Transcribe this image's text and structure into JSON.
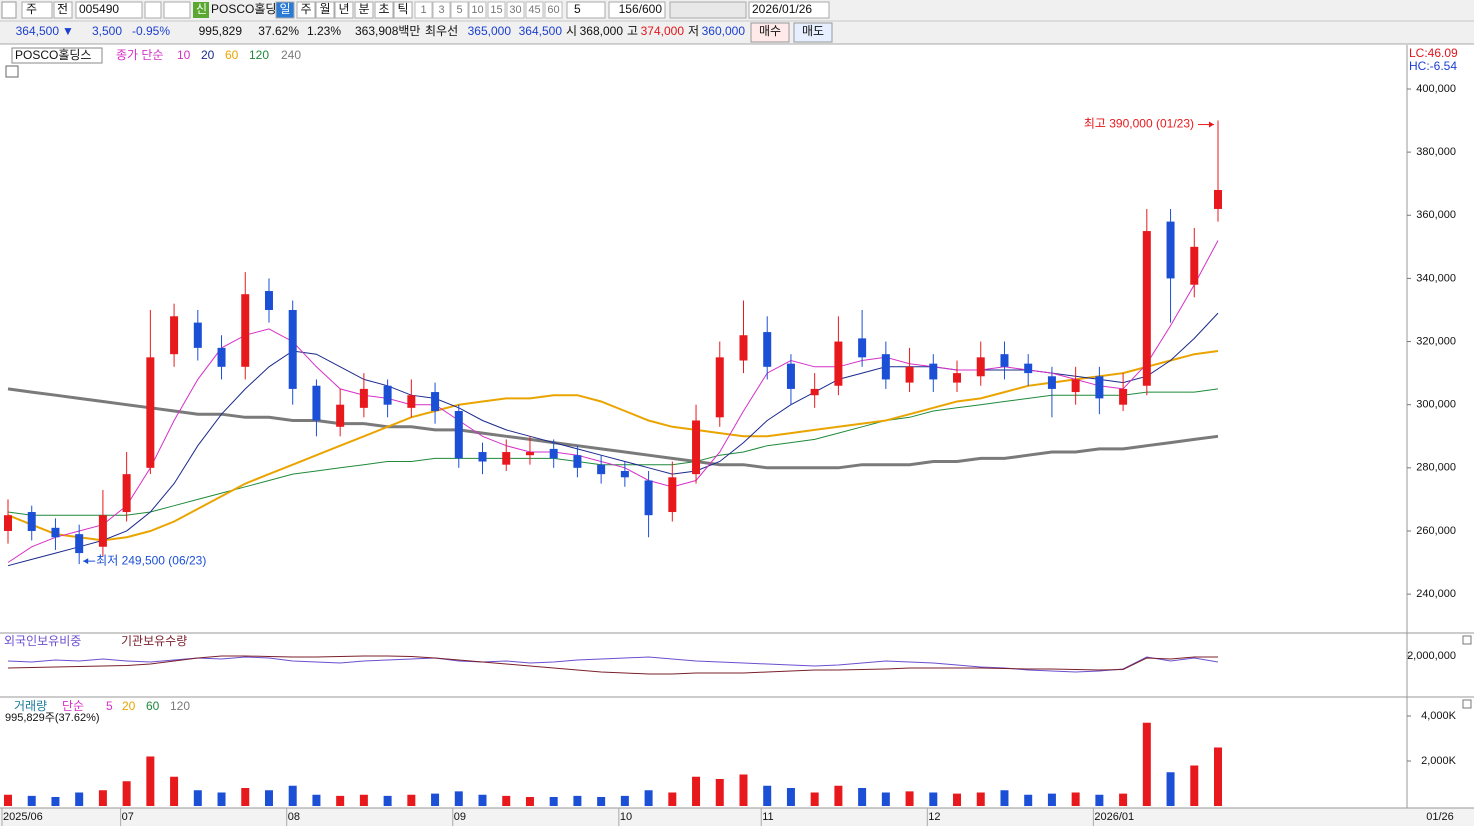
{
  "toolbar": {
    "market": "주",
    "all": "전",
    "code": "005490",
    "new": "신",
    "name": "POSCO홀딩",
    "periods": [
      "일",
      "주",
      "월",
      "년",
      "분",
      "초",
      "틱"
    ],
    "minutes": [
      "1",
      "3",
      "5",
      "10",
      "15",
      "30",
      "45",
      "60"
    ],
    "count_select": "5",
    "count": "156/600",
    "date": "2026/01/26"
  },
  "quote": {
    "price": "364,500",
    "arrow": "▼",
    "change": "3,500",
    "change_rate": "-0.95%",
    "volume": "995,829",
    "volume_ratio": "37.62%",
    "turnover": "1.23%",
    "amount": "363,908백만",
    "best_label": "최우선",
    "best_ask": "365,000",
    "best_bid": "364,500",
    "open_label": "시",
    "open": "368,000",
    "high_label": "고",
    "high": "374,000",
    "low_label": "저",
    "low": "360,000",
    "buy": "매수",
    "sell": "매도"
  },
  "chart_data": [
    {
      "type": "candlestick",
      "name": "POSCO홀딩스",
      "ma_label": "종가 단순",
      "categories": [
        "2025/06",
        null,
        null,
        null,
        null,
        "07",
        null,
        null,
        null,
        null,
        null,
        null,
        "08",
        null,
        null,
        null,
        null,
        null,
        null,
        "09",
        null,
        null,
        null,
        null,
        null,
        null,
        "10",
        null,
        null,
        null,
        null,
        null,
        "11",
        null,
        null,
        null,
        null,
        null,
        null,
        "12",
        null,
        null,
        null,
        null,
        null,
        null,
        "2026/01",
        null,
        null,
        null,
        null,
        null
      ],
      "open": [
        260000,
        266000,
        261000,
        259000,
        255000,
        266000,
        280000,
        316000,
        326000,
        318000,
        312000,
        336000,
        330000,
        306000,
        293000,
        299000,
        306000,
        299000,
        304000,
        298000,
        285000,
        281000,
        284000,
        286000,
        284000,
        281000,
        279000,
        276000,
        266000,
        278000,
        296000,
        314000,
        323000,
        313000,
        303000,
        306000,
        321000,
        316000,
        307000,
        313000,
        307000,
        309000,
        316000,
        313000,
        309000,
        304000,
        309000,
        300000,
        306000,
        358000,
        338000,
        362000
      ],
      "high": [
        270000,
        268000,
        264000,
        262000,
        273000,
        285000,
        330000,
        332000,
        330000,
        322000,
        342000,
        340000,
        333000,
        308000,
        305000,
        310000,
        308000,
        308000,
        307000,
        300000,
        288000,
        289000,
        290000,
        289000,
        287000,
        284000,
        282000,
        279000,
        282000,
        300000,
        320000,
        333000,
        328000,
        316000,
        310000,
        328000,
        330000,
        320000,
        318000,
        316000,
        314000,
        320000,
        320000,
        316000,
        312000,
        312000,
        312000,
        310000,
        362000,
        362000,
        356000,
        390000
      ],
      "low": [
        256000,
        257000,
        254000,
        249500,
        252000,
        263000,
        278000,
        312000,
        314000,
        308000,
        308000,
        326000,
        300000,
        290000,
        290000,
        296000,
        296000,
        296000,
        294000,
        280000,
        278000,
        279000,
        281000,
        280000,
        277000,
        275000,
        274000,
        258000,
        263000,
        275000,
        293000,
        310000,
        308000,
        300000,
        299000,
        303000,
        312000,
        305000,
        304000,
        304000,
        304000,
        306000,
        308000,
        306000,
        296000,
        300000,
        297000,
        298000,
        303000,
        326000,
        334000,
        358000
      ],
      "close": [
        265000,
        260000,
        258000,
        253000,
        265000,
        278000,
        315000,
        328000,
        318000,
        312000,
        335000,
        330000,
        305000,
        295000,
        300000,
        305000,
        300000,
        303000,
        298000,
        283000,
        282000,
        285000,
        285000,
        283000,
        280000,
        278000,
        277000,
        265000,
        277000,
        295000,
        315000,
        322000,
        312000,
        305000,
        305000,
        320000,
        315000,
        308000,
        312000,
        308000,
        310000,
        315000,
        312000,
        310000,
        305000,
        308000,
        302000,
        305000,
        355000,
        340000,
        350000,
        368000
      ],
      "up_color": "#e8191d",
      "down_color": "#1b4fd6",
      "series": [
        {
          "name": "10",
          "color": "#d62fc8",
          "width": 1,
          "values": [
            250000,
            255000,
            258000,
            260000,
            262000,
            268000,
            280000,
            295000,
            308000,
            318000,
            322000,
            324000,
            320000,
            312000,
            305000,
            303000,
            302000,
            300000,
            300000,
            295000,
            290000,
            287000,
            285000,
            285000,
            284000,
            282000,
            280000,
            276000,
            274000,
            276000,
            285000,
            298000,
            310000,
            314000,
            312000,
            312000,
            314000,
            315000,
            313000,
            312000,
            311000,
            311000,
            312000,
            311000,
            310000,
            308000,
            306000,
            305000,
            313000,
            325000,
            338000,
            352000
          ]
        },
        {
          "name": "20",
          "color": "#1a2a8c",
          "width": 1,
          "values": [
            249000,
            251000,
            253000,
            255000,
            257000,
            260000,
            266000,
            275000,
            287000,
            297000,
            305000,
            312000,
            317000,
            316000,
            312000,
            308000,
            306000,
            303000,
            302000,
            299000,
            295000,
            292000,
            290000,
            288000,
            286000,
            284000,
            282000,
            280000,
            278000,
            279000,
            282000,
            288000,
            295000,
            300000,
            304000,
            308000,
            310000,
            312000,
            312000,
            312000,
            311000,
            311000,
            311000,
            311000,
            310000,
            309000,
            308000,
            307000,
            309000,
            314000,
            321000,
            329000
          ]
        },
        {
          "name": "60",
          "color": "#eaa400",
          "width": 2,
          "values": [
            265000,
            262000,
            259000,
            258000,
            257000,
            258000,
            260000,
            263000,
            267000,
            271000,
            275000,
            278000,
            281000,
            284000,
            287000,
            290000,
            293000,
            296000,
            298000,
            300000,
            301000,
            302000,
            302000,
            303000,
            303000,
            301000,
            298000,
            295000,
            293000,
            292000,
            291000,
            290000,
            290000,
            291000,
            292000,
            293000,
            294000,
            295000,
            297000,
            299000,
            301000,
            302000,
            304000,
            306000,
            307000,
            308000,
            309000,
            310000,
            312000,
            314000,
            316000,
            317000
          ]
        },
        {
          "name": "120",
          "color": "#1f8a3a",
          "width": 1,
          "values": [
            266000,
            265000,
            265000,
            265000,
            265000,
            265000,
            266000,
            268000,
            270000,
            272000,
            274000,
            276000,
            278000,
            279000,
            280000,
            281000,
            282000,
            282000,
            283000,
            283000,
            283000,
            283000,
            283000,
            283000,
            282000,
            281000,
            281000,
            281000,
            281000,
            282000,
            284000,
            285000,
            287000,
            288000,
            289000,
            291000,
            293000,
            295000,
            296000,
            298000,
            299000,
            300000,
            301000,
            302000,
            303000,
            303000,
            303000,
            303000,
            304000,
            304000,
            304000,
            305000
          ]
        },
        {
          "name": "240",
          "color": "#7a7a7a",
          "width": 3,
          "values": [
            305000,
            304000,
            303000,
            302000,
            301000,
            300000,
            299000,
            298000,
            297000,
            297000,
            296000,
            296000,
            295000,
            295000,
            294000,
            294000,
            293000,
            293000,
            292000,
            292000,
            291000,
            290000,
            289000,
            288000,
            287000,
            286000,
            285000,
            284000,
            283000,
            282000,
            281000,
            281000,
            280000,
            280000,
            280000,
            280000,
            281000,
            281000,
            281000,
            282000,
            282000,
            283000,
            283000,
            284000,
            285000,
            285000,
            286000,
            286000,
            287000,
            288000,
            289000,
            290000
          ]
        }
      ],
      "ylim": [
        228000,
        413300
      ],
      "yticks": [
        {
          "value": 240000,
          "label": "240,000"
        },
        {
          "value": 260000,
          "label": "260,000"
        },
        {
          "value": 280000,
          "label": "280,000"
        },
        {
          "value": 300000,
          "label": "300,000"
        },
        {
          "value": 320000,
          "label": "320,000"
        },
        {
          "value": 340000,
          "label": "340,000"
        },
        {
          "value": 360000,
          "label": "360,000"
        },
        {
          "value": 380000,
          "label": "380,000"
        },
        {
          "value": 400000,
          "label": "400,000"
        }
      ],
      "high_annotation": "최고 390,000 (01/23)",
      "low_annotation": "최저 249,500 (06/23)",
      "lc_label": "LC:46.09",
      "hc_label": "HC:-6.54",
      "x_cursor_label": "01/26"
    },
    {
      "type": "line",
      "series": [
        {
          "name": "외국인보유비중",
          "color": "#6b4fcf",
          "values": [
            1900000,
            1880000,
            1920000,
            1900000,
            1940000,
            1900000,
            1880000,
            1920000,
            1960000,
            1940000,
            1980000,
            1960000,
            1900000,
            1880000,
            1860000,
            1900000,
            1920000,
            1940000,
            1960000,
            1900000,
            1880000,
            1900000,
            1860000,
            1880000,
            1920000,
            1940000,
            1960000,
            1980000,
            1940000,
            1900000,
            1880000,
            1860000,
            1840000,
            1820000,
            1800000,
            1820000,
            1860000,
            1900000,
            1880000,
            1860000,
            1820000,
            1780000,
            1760000,
            1720000,
            1700000,
            1680000,
            1700000,
            1740000,
            1980000,
            1900000,
            1960000,
            1880000
          ]
        },
        {
          "name": "기관보유수량",
          "color": "#7a1f2b",
          "values": [
            1760000,
            1770000,
            1780000,
            1790000,
            1800000,
            1810000,
            1840000,
            1900000,
            1960000,
            2000000,
            2000000,
            1990000,
            1980000,
            1980000,
            1990000,
            2000000,
            2000000,
            1990000,
            1960000,
            1920000,
            1880000,
            1840000,
            1800000,
            1760000,
            1720000,
            1680000,
            1660000,
            1640000,
            1640000,
            1660000,
            1660000,
            1660000,
            1680000,
            1700000,
            1720000,
            1720000,
            1730000,
            1740000,
            1760000,
            1760000,
            1760000,
            1760000,
            1750000,
            1740000,
            1740000,
            1730000,
            1720000,
            1730000,
            1960000,
            1940000,
            1980000,
            1980000
          ]
        }
      ],
      "ylim": [
        1220000,
        2400000
      ],
      "yticks": [
        {
          "value": 2000000,
          "label": "2,000,000"
        }
      ]
    },
    {
      "type": "bar",
      "name": "거래량",
      "ma_label": "단순",
      "legend": [
        {
          "name": "5",
          "color": "#d62fc8"
        },
        {
          "name": "20",
          "color": "#eaa400"
        },
        {
          "name": "60",
          "color": "#1f8a3a"
        },
        {
          "name": "120",
          "color": "#7a7a7a"
        }
      ],
      "subtitle": "995,829주(37.62%)",
      "values": [
        500000,
        450000,
        400000,
        600000,
        700000,
        1100000,
        2200000,
        1300000,
        700000,
        600000,
        800000,
        700000,
        900000,
        500000,
        450000,
        500000,
        450000,
        500000,
        550000,
        650000,
        500000,
        450000,
        400000,
        400000,
        450000,
        400000,
        450000,
        700000,
        600000,
        1300000,
        1200000,
        1400000,
        900000,
        800000,
        600000,
        900000,
        800000,
        600000,
        650000,
        600000,
        550000,
        600000,
        700000,
        500000,
        550000,
        600000,
        500000,
        550000,
        3700000,
        1500000,
        1800000,
        2600000
      ],
      "ylim": [
        0,
        4710000
      ],
      "yticks": [
        {
          "value": 2000000,
          "label": "2,000K"
        },
        {
          "value": 4000000,
          "label": "4,000K"
        }
      ]
    }
  ]
}
